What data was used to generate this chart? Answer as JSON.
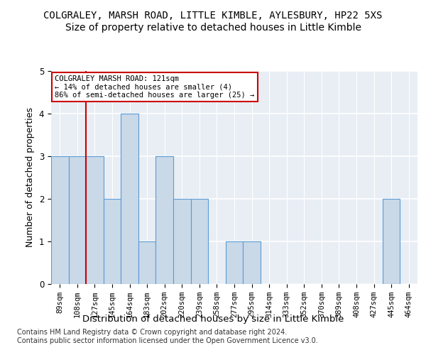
{
  "title_line1": "COLGRALEY, MARSH ROAD, LITTLE KIMBLE, AYLESBURY, HP22 5XS",
  "title_line2": "Size of property relative to detached houses in Little Kimble",
  "xlabel": "Distribution of detached houses by size in Little Kimble",
  "ylabel": "Number of detached properties",
  "footnote": "Contains HM Land Registry data © Crown copyright and database right 2024.\nContains public sector information licensed under the Open Government Licence v3.0.",
  "bin_labels": [
    "89sqm",
    "108sqm",
    "127sqm",
    "145sqm",
    "164sqm",
    "183sqm",
    "202sqm",
    "220sqm",
    "239sqm",
    "258sqm",
    "277sqm",
    "295sqm",
    "314sqm",
    "333sqm",
    "352sqm",
    "370sqm",
    "389sqm",
    "408sqm",
    "427sqm",
    "445sqm",
    "464sqm"
  ],
  "bar_values": [
    3,
    3,
    3,
    2,
    4,
    1,
    3,
    2,
    2,
    0,
    1,
    1,
    0,
    0,
    0,
    0,
    0,
    0,
    0,
    2,
    0
  ],
  "bar_color": "#c9d9e8",
  "bar_edge_color": "#5b9bd5",
  "red_line_index": 2,
  "red_line_color": "#cc0000",
  "annotation_text": "COLGRALEY MARSH ROAD: 121sqm\n← 14% of detached houses are smaller (4)\n86% of semi-detached houses are larger (25) →",
  "annotation_box_color": "white",
  "annotation_box_edge_color": "#cc0000",
  "ylim": [
    0,
    5
  ],
  "yticks": [
    0,
    1,
    2,
    3,
    4,
    5
  ],
  "background_color": "#e8eef4",
  "grid_color": "#ffffff",
  "title1_fontsize": 10,
  "title2_fontsize": 10,
  "xlabel_fontsize": 9.5,
  "ylabel_fontsize": 9,
  "tick_fontsize": 7.5,
  "footnote_fontsize": 7
}
